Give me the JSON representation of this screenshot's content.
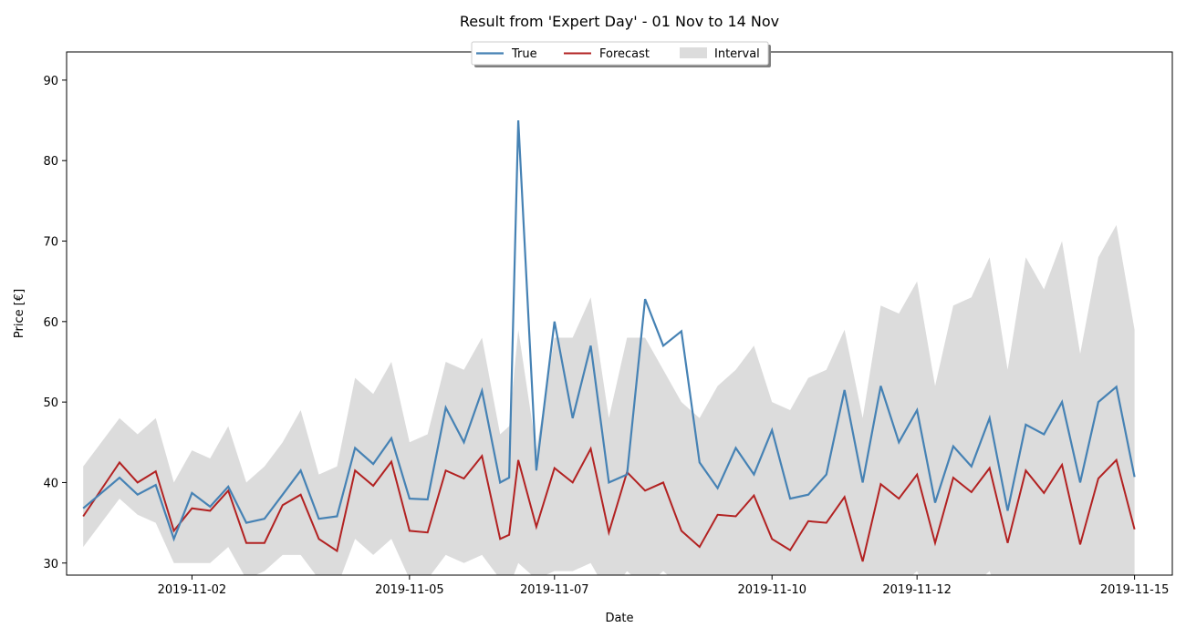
{
  "chart_data": {
    "type": "line",
    "title": "Result from 'Expert Day' - 01 Nov to 14 Nov",
    "xlabel": "Date",
    "ylabel": "Price [€]",
    "ylim": [
      28.5,
      93.5
    ],
    "xlim": [
      "2019-10-31T06:30",
      "2019-11-15T12:30"
    ],
    "yticks": [
      30,
      40,
      50,
      60,
      70,
      80,
      90
    ],
    "xticks": [
      "2019-11-02",
      "2019-11-05",
      "2019-11-07",
      "2019-11-10",
      "2019-11-12",
      "2019-11-15"
    ],
    "grid": false,
    "legend_position": "top-center",
    "x": [
      "2019-10-31T12:00",
      "2019-11-01T00:00",
      "2019-11-01T06:00",
      "2019-11-01T12:00",
      "2019-11-01T18:00",
      "2019-11-02T00:00",
      "2019-11-02T06:00",
      "2019-11-02T12:00",
      "2019-11-02T18:00",
      "2019-11-03T00:00",
      "2019-11-03T06:00",
      "2019-11-03T12:00",
      "2019-11-03T18:00",
      "2019-11-04T00:00",
      "2019-11-04T06:00",
      "2019-11-04T12:00",
      "2019-11-04T18:00",
      "2019-11-05T00:00",
      "2019-11-05T06:00",
      "2019-11-05T12:00",
      "2019-11-05T18:00",
      "2019-11-06T00:00",
      "2019-11-06T06:00",
      "2019-11-06T09:00",
      "2019-11-06T12:00",
      "2019-11-06T18:00",
      "2019-11-07T00:00",
      "2019-11-07T06:00",
      "2019-11-07T12:00",
      "2019-11-07T18:00",
      "2019-11-08T00:00",
      "2019-11-08T06:00",
      "2019-11-08T12:00",
      "2019-11-08T18:00",
      "2019-11-09T00:00",
      "2019-11-09T06:00",
      "2019-11-09T12:00",
      "2019-11-09T18:00",
      "2019-11-10T00:00",
      "2019-11-10T06:00",
      "2019-11-10T12:00",
      "2019-11-10T18:00",
      "2019-11-11T00:00",
      "2019-11-11T06:00",
      "2019-11-11T12:00",
      "2019-11-11T18:00",
      "2019-11-12T00:00",
      "2019-11-12T06:00",
      "2019-11-12T12:00",
      "2019-11-12T18:00",
      "2019-11-13T00:00",
      "2019-11-13T06:00",
      "2019-11-13T12:00",
      "2019-11-13T18:00",
      "2019-11-14T00:00",
      "2019-11-14T06:00",
      "2019-11-14T12:00",
      "2019-11-14T18:00",
      "2019-11-15T00:00"
    ],
    "series": [
      {
        "name": "True",
        "color": "#4682b4",
        "values": [
          36.8,
          40.6,
          38.5,
          39.7,
          33.0,
          38.7,
          37.0,
          39.5,
          35.0,
          35.5,
          38.5,
          41.5,
          35.5,
          35.8,
          44.3,
          42.3,
          45.5,
          38.0,
          37.9,
          49.3,
          45.0,
          51.4,
          40.0,
          40.6,
          85.0,
          41.5,
          60.0,
          48.0,
          57.0,
          40.0,
          41.0,
          62.8,
          57.0,
          58.8,
          42.5,
          39.3,
          44.3,
          41.0,
          46.5,
          38.0,
          38.5,
          41.0,
          51.5,
          40.0,
          52.0,
          45.0,
          49.0,
          37.5,
          44.5,
          42.0,
          48.0,
          36.5,
          47.2,
          46.0,
          50.0,
          40.0,
          50.0,
          51.9,
          40.7
        ]
      },
      {
        "name": "Forecast",
        "color": "#b22222",
        "values": [
          35.8,
          42.5,
          40.0,
          41.4,
          34.0,
          36.8,
          36.5,
          39.0,
          32.5,
          32.5,
          37.2,
          38.5,
          33.0,
          31.5,
          41.5,
          39.6,
          42.6,
          34.0,
          33.8,
          41.5,
          40.5,
          43.3,
          33.0,
          33.5,
          42.8,
          34.5,
          41.8,
          40.0,
          44.2,
          33.8,
          41.3,
          39.0,
          40.0,
          34.0,
          32.0,
          36.0,
          35.8,
          38.4,
          33.0,
          31.6,
          35.2,
          35.0,
          38.2,
          30.2,
          39.8,
          38.0,
          41.0,
          32.5,
          40.6,
          38.8,
          41.8,
          32.5,
          41.5,
          38.7,
          42.2,
          32.3,
          40.5,
          42.8,
          34.2
        ]
      }
    ],
    "interval": {
      "name": "Interval",
      "color": "#dcdcdc",
      "upper": [
        42,
        48,
        46,
        48,
        40,
        44,
        43,
        47,
        40,
        42,
        45,
        49,
        41,
        42,
        53,
        51,
        55,
        45,
        46,
        55,
        54,
        58,
        46,
        47,
        59,
        44,
        58,
        58,
        63,
        48,
        58,
        58,
        54,
        50,
        48,
        52,
        54,
        57,
        50,
        49,
        53,
        54,
        59,
        48,
        62,
        61,
        65,
        52,
        62,
        63,
        68,
        54,
        68,
        64,
        70,
        56,
        68,
        72,
        59
      ],
      "lower": [
        32,
        38,
        36,
        35,
        30,
        30,
        30,
        32,
        28,
        29,
        31,
        31,
        28,
        27,
        33,
        31,
        33,
        28,
        28,
        31,
        30,
        31,
        28,
        27,
        30,
        28,
        29,
        29,
        30,
        26,
        29,
        27,
        29,
        27,
        25,
        27,
        26,
        28,
        25,
        24,
        26,
        26,
        27,
        23,
        28,
        27,
        29,
        24,
        28,
        27,
        29,
        23,
        28,
        26,
        28,
        22,
        27,
        28,
        22
      ]
    }
  }
}
